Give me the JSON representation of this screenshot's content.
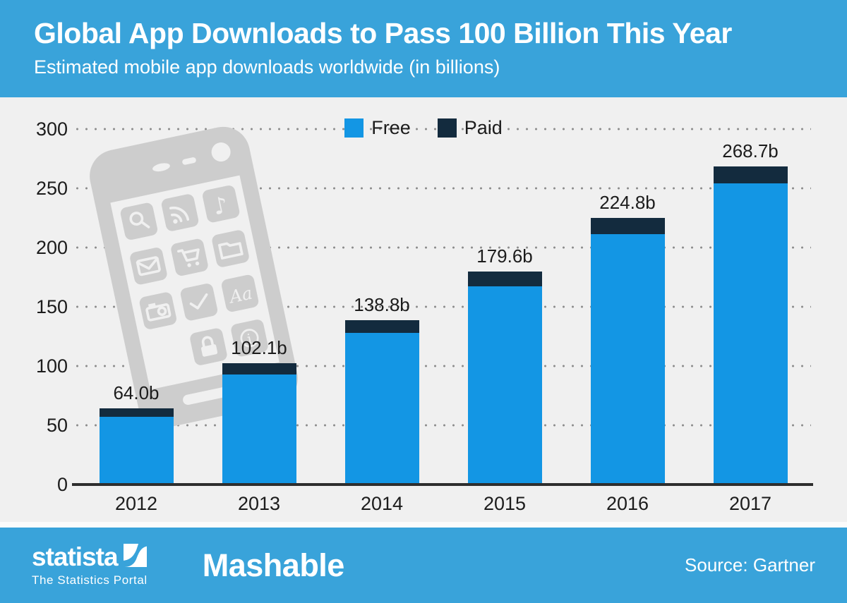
{
  "header": {
    "title": "Global App Downloads to Pass 100 Billion This Year",
    "subtitle": "Estimated mobile app downloads worldwide (in billions)"
  },
  "chart_data": {
    "type": "bar",
    "stacked": true,
    "categories": [
      "2012",
      "2013",
      "2014",
      "2015",
      "2016",
      "2017"
    ],
    "series": [
      {
        "name": "Free",
        "color": "#1396e4",
        "values": [
          57.3,
          92.9,
          127.7,
          167.0,
          211.3,
          253.9
        ]
      },
      {
        "name": "Paid",
        "color": "#132b3e",
        "values": [
          6.7,
          9.2,
          11.1,
          12.6,
          13.5,
          14.8
        ]
      }
    ],
    "total_labels": [
      "64.0b",
      "102.1b",
      "138.8b",
      "179.6b",
      "224.8b",
      "268.7b"
    ],
    "ylim": [
      0,
      300
    ],
    "yticks": [
      0,
      50,
      100,
      150,
      200,
      250,
      300
    ],
    "xlabel": "",
    "ylabel": "",
    "grid": "dotted-horizontal",
    "legend_position": "top-center"
  },
  "watermark": {
    "icon": "smartphone-with-app-icons"
  },
  "footer": {
    "statista_logo": "statista",
    "statista_tagline": "The Statistics Portal",
    "partner_logo": "Mashable",
    "source": "Source: Gartner"
  },
  "colors": {
    "banner_blue": "#39a3da",
    "chart_background": "#f0f0f0",
    "free_blue": "#1396e4",
    "paid_navy": "#132b3e",
    "text_dark": "#1c1c1c",
    "grid_dot_gray": "#8c8c8c",
    "watermark_gray": "#cdcdcd",
    "text_white": "#ffffff"
  }
}
